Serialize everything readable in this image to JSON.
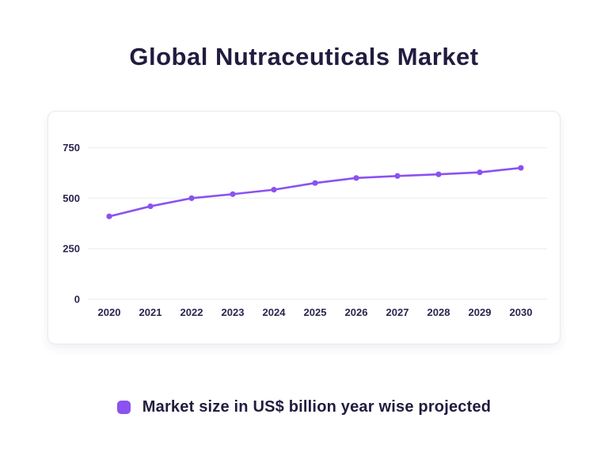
{
  "page": {
    "title": "Global Nutraceuticals Market"
  },
  "colors": {
    "accent_purple": "#8b52f0",
    "title_text": "#221c3f",
    "axis_text": "#2b2550",
    "gridline": "#f1f1f5",
    "card_background": "#ffffff",
    "card_border": "#e9e9f0"
  },
  "chart_data": {
    "type": "line",
    "title": "Global Nutraceuticals Market",
    "xlabel": "",
    "ylabel": "",
    "categories": [
      "2020",
      "2021",
      "2022",
      "2023",
      "2024",
      "2025",
      "2026",
      "2027",
      "2028",
      "2029",
      "2030"
    ],
    "series": [
      {
        "name": "Market size in US$ billion year wise projected",
        "values": [
          410,
          460,
          500,
          520,
          542,
          575,
          600,
          610,
          618,
          628,
          650
        ],
        "color": "#8b52f0",
        "marker": "circle"
      }
    ],
    "yticks": [
      0,
      250,
      500,
      750
    ],
    "ylim": [
      0,
      850
    ],
    "grid": true,
    "legend_position": "bottom"
  },
  "legend": {
    "label": "Market size in US$ billion year wise projected"
  }
}
